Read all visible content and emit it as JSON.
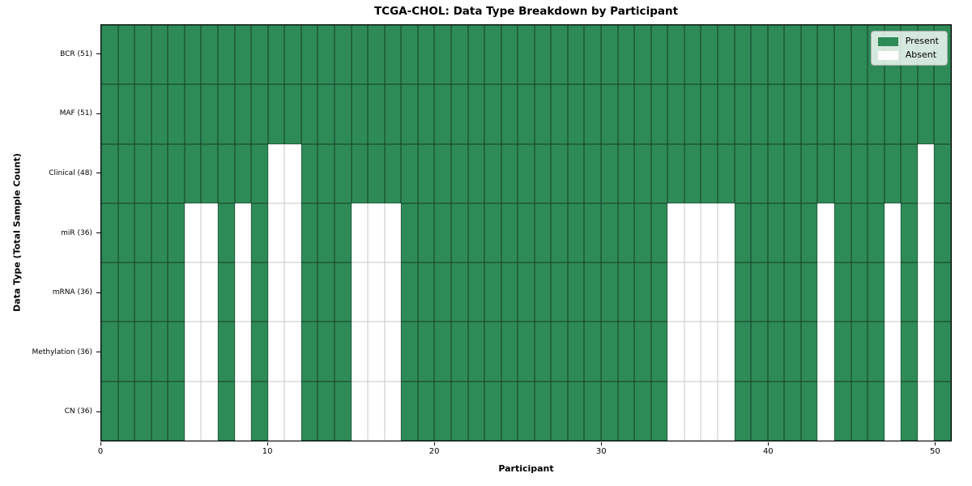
{
  "title": "TCGA-CHOL: Data Type Breakdown by Participant",
  "x_axis_title": "Participant",
  "y_axis_title": "Data Type (Total Sample Count)",
  "colors": {
    "present": "#2e8b57",
    "absent": "#ffffff",
    "spine": "#000000",
    "legend_border": "#b0b0b0"
  },
  "chart_data": {
    "type": "heatmap",
    "x_range": [
      0,
      51
    ],
    "n_participants": 51,
    "x_ticks": [
      0,
      10,
      20,
      30,
      40,
      50
    ],
    "legend": {
      "present": "Present",
      "absent": "Absent"
    },
    "legend_position": "upper right",
    "rows": [
      {
        "label": "BCR (51)",
        "data_type": "BCR",
        "present_count": 51,
        "absent_participants": []
      },
      {
        "label": "MAF (51)",
        "data_type": "MAF",
        "present_count": 51,
        "absent_participants": []
      },
      {
        "label": "Clinical (48)",
        "data_type": "Clinical",
        "present_count": 48,
        "absent_participants": [
          10,
          11,
          49
        ]
      },
      {
        "label": "miR (36)",
        "data_type": "miR",
        "present_count": 36,
        "absent_participants": [
          5,
          6,
          8,
          10,
          11,
          15,
          16,
          17,
          34,
          35,
          36,
          37,
          43,
          47,
          49
        ]
      },
      {
        "label": "mRNA (36)",
        "data_type": "mRNA",
        "present_count": 36,
        "absent_participants": [
          5,
          6,
          8,
          10,
          11,
          15,
          16,
          17,
          34,
          35,
          36,
          37,
          43,
          47,
          49
        ]
      },
      {
        "label": "Methylation (36)",
        "data_type": "Methylation",
        "present_count": 36,
        "absent_participants": [
          5,
          6,
          8,
          10,
          11,
          15,
          16,
          17,
          34,
          35,
          36,
          37,
          43,
          47,
          49
        ]
      },
      {
        "label": "CN (36)",
        "data_type": "CN",
        "present_count": 36,
        "absent_participants": [
          5,
          6,
          8,
          10,
          11,
          15,
          16,
          17,
          34,
          35,
          36,
          37,
          43,
          47,
          49
        ]
      }
    ]
  }
}
